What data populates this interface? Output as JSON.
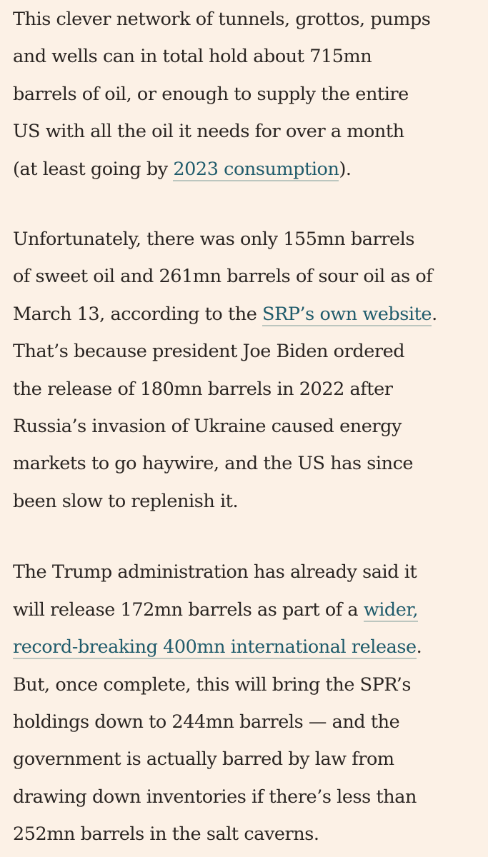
{
  "article": {
    "paragraphs": [
      {
        "lines": [
          [
            {
              "text": "This clever network of tunnels, grottos, pumps"
            }
          ],
          [
            {
              "text": "and wells can in total hold about 715mn"
            }
          ],
          [
            {
              "text": "barrels of oil, or enough to supply the entire"
            }
          ],
          [
            {
              "text": "US with all the oil it needs for over a month"
            }
          ],
          [
            {
              "text": "(at least going by "
            },
            {
              "text": "2023 consumption",
              "link": true
            },
            {
              "text": ")."
            }
          ]
        ]
      },
      {
        "lines": [
          [
            {
              "text": "Unfortunately, there was only 155mn barrels"
            }
          ],
          [
            {
              "text": "of sweet oil and 261mn barrels of sour oil as of"
            }
          ],
          [
            {
              "text": "March 13, according to the "
            },
            {
              "text": "SRP’s own website",
              "link": true
            },
            {
              "text": "."
            }
          ],
          [
            {
              "text": "That’s because president Joe Biden ordered"
            }
          ],
          [
            {
              "text": "the release of 180mn barrels in 2022 after"
            }
          ],
          [
            {
              "text": "Russia’s invasion of Ukraine caused energy"
            }
          ],
          [
            {
              "text": "markets to go haywire, and the US has since"
            }
          ],
          [
            {
              "text": "been slow to replenish it."
            }
          ]
        ]
      },
      {
        "lines": [
          [
            {
              "text": "The Trump administration has already said it"
            }
          ],
          [
            {
              "text": "will release 172mn barrels as part of a "
            },
            {
              "text": "wider,",
              "link": true
            }
          ],
          [
            {
              "text": "record-breaking 400mn international release",
              "link": true
            },
            {
              "text": "."
            }
          ],
          [
            {
              "text": "But, once complete, this will bring the SPR’s"
            }
          ],
          [
            {
              "text": "holdings down to 244mn barrels — and the"
            }
          ],
          [
            {
              "text": "government is actually barred by law from"
            }
          ],
          [
            {
              "text": "drawing down inventories if there’s less than"
            }
          ],
          [
            {
              "text": "252mn barrels in the salt caverns."
            }
          ]
        ]
      }
    ]
  }
}
